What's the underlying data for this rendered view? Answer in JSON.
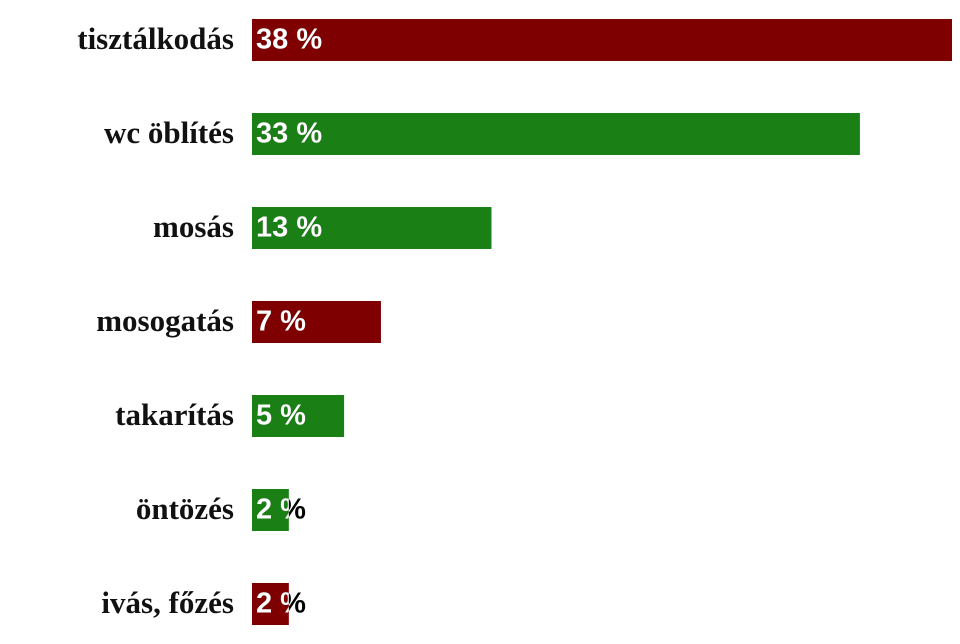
{
  "chart_data": {
    "type": "bar",
    "orientation": "horizontal",
    "categories": [
      "tisztálkodás",
      "wc öblítés",
      "mosás",
      "mosogatás",
      "takarítás",
      "öntözés",
      "ivás, főzés"
    ],
    "values": [
      38,
      33,
      13,
      7,
      5,
      2,
      2
    ],
    "value_labels": [
      "38 %",
      "33 %",
      "13 %",
      "7 %",
      "5 %",
      "2 %",
      "2 %"
    ],
    "colors": [
      "#7f0000",
      "#1a7f14",
      "#1a7f14",
      "#7f0000",
      "#1a7f14",
      "#1a7f14",
      "#7f0000"
    ]
  }
}
